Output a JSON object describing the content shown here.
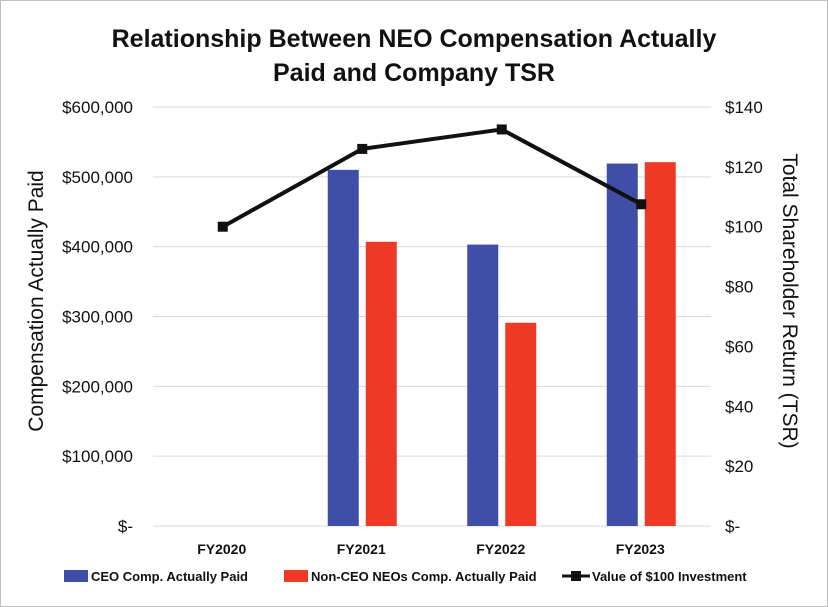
{
  "chart_data": {
    "type": "bar",
    "title": "Relationship Between NEO Compensation Actually Paid and Company TSR",
    "title_lines": [
      "Relationship Between NEO Compensation Actually",
      "Paid and Company TSR"
    ],
    "categories": [
      "FY2020",
      "FY2021",
      "FY2022",
      "FY2023"
    ],
    "ylabel": "Compensation Actually Paid",
    "y2label": "Total Shareholder Return (TSR)",
    "ylim": [
      0,
      600000
    ],
    "y2lim": [
      0,
      140
    ],
    "yticks": [
      0,
      100000,
      200000,
      300000,
      400000,
      500000,
      600000
    ],
    "ytick_labels": [
      "$-",
      "$100,000",
      "$200,000",
      "$300,000",
      "$400,000",
      "$500,000",
      "$600,000"
    ],
    "y2ticks": [
      0,
      20,
      40,
      60,
      80,
      100,
      120,
      140
    ],
    "y2tick_labels": [
      "$-",
      "$20",
      "$40",
      "$60",
      "$80",
      "$100",
      "$120",
      "$140"
    ],
    "grid": true,
    "legend_position": "bottom",
    "series": [
      {
        "name": "CEO Comp. Actually Paid",
        "type": "bar",
        "axis": "left",
        "color": "#3f4fa8",
        "values": [
          null,
          510000,
          403000,
          519000
        ]
      },
      {
        "name": "Non-CEO NEOs Comp. Actually Paid",
        "type": "bar",
        "axis": "left",
        "color": "#ee3a24",
        "values": [
          null,
          407000,
          291000,
          521000
        ]
      },
      {
        "name": "Value of $100 Investment",
        "type": "line",
        "axis": "right",
        "color": "#111111",
        "values": [
          100,
          126,
          132.5,
          107.5
        ]
      }
    ]
  }
}
